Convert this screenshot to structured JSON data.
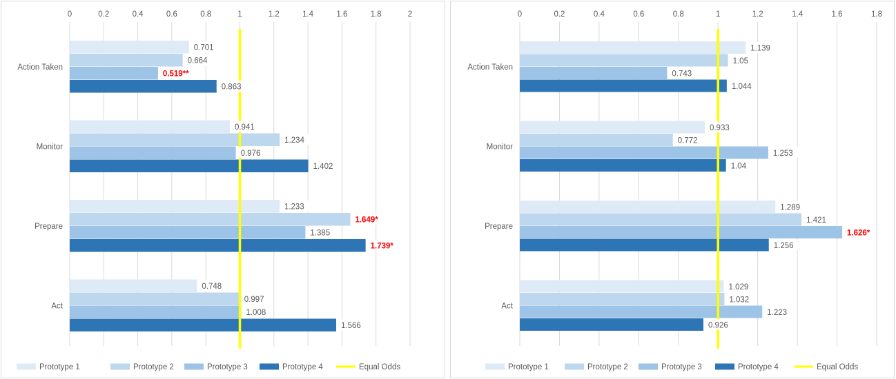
{
  "colors": {
    "Prototype 1": "#deebf7",
    "Prototype 2": "#bdd7ee",
    "Prototype 3": "#9dc3e6",
    "Prototype 4": "#2e75b6",
    "equal_odds": "#ffff00",
    "gridline": "#d9d9d9",
    "text": "#595959",
    "highlight": "#ff0000"
  },
  "chart_data": [
    {
      "type": "bar",
      "orientation": "horizontal",
      "categories": [
        "Action Taken",
        "Monitor",
        "Prepare",
        "Act"
      ],
      "series": [
        {
          "name": "Prototype 1",
          "values": [
            0.701,
            0.941,
            1.233,
            0.748
          ]
        },
        {
          "name": "Prototype 2",
          "values": [
            0.664,
            1.234,
            1.649,
            0.997
          ]
        },
        {
          "name": "Prototype 3",
          "values": [
            0.519,
            0.976,
            1.385,
            1.008
          ]
        },
        {
          "name": "Prototype 4",
          "values": [
            0.863,
            1.402,
            1.739,
            1.566
          ]
        }
      ],
      "data_labels": [
        [
          "0.701",
          "0.941",
          "1.233",
          "0.748"
        ],
        [
          "0.664",
          "1.234",
          "1.649*",
          "0.997"
        ],
        [
          "0.519**",
          "0.976",
          "1.385",
          "1.008"
        ],
        [
          "0.863",
          "1.402",
          "1.739*",
          "1.566"
        ]
      ],
      "highlighted_labels": [
        [
          2,
          0
        ],
        [
          1,
          2
        ],
        [
          3,
          2
        ]
      ],
      "reference_line": {
        "name": "Equal Odds",
        "value": 1
      },
      "xlim": [
        0,
        2
      ],
      "xticks": [
        "0",
        "0.2",
        "0.4",
        "0.6",
        "0.8",
        "1",
        "1.2",
        "1.4",
        "1.6",
        "1.8",
        "2"
      ],
      "axis_position": "top",
      "grid": true,
      "legend_position": "bottom",
      "title": "",
      "xlabel": "",
      "ylabel": ""
    },
    {
      "type": "bar",
      "orientation": "horizontal",
      "categories": [
        "Action Taken",
        "Monitor",
        "Prepare",
        "Act"
      ],
      "series": [
        {
          "name": "Prototype 1",
          "values": [
            1.139,
            0.933,
            1.289,
            1.029
          ]
        },
        {
          "name": "Prototype 2",
          "values": [
            1.05,
            0.772,
            1.421,
            1.032
          ]
        },
        {
          "name": "Prototype 3",
          "values": [
            0.743,
            1.253,
            1.626,
            1.223
          ]
        },
        {
          "name": "Prototype 4",
          "values": [
            1.044,
            1.04,
            1.256,
            0.926
          ]
        }
      ],
      "data_labels": [
        [
          "1.139",
          "0.933",
          "1.289",
          "1.029"
        ],
        [
          "1.05",
          "0.772",
          "1.421",
          "1.032"
        ],
        [
          "0.743",
          "1.253",
          "1.626*",
          "1.223"
        ],
        [
          "1.044",
          "1.04",
          "1.256",
          "0.926"
        ]
      ],
      "highlighted_labels": [
        [
          2,
          2
        ]
      ],
      "reference_line": {
        "name": "Equal Odds",
        "value": 1
      },
      "xlim": [
        0,
        1.8
      ],
      "xticks": [
        "0",
        "0.2",
        "0.4",
        "0.6",
        "0.8",
        "1",
        "1.2",
        "1.4",
        "1.6",
        "1.8"
      ],
      "axis_position": "top",
      "grid": true,
      "legend_position": "bottom",
      "title": "",
      "xlabel": "",
      "ylabel": ""
    }
  ]
}
